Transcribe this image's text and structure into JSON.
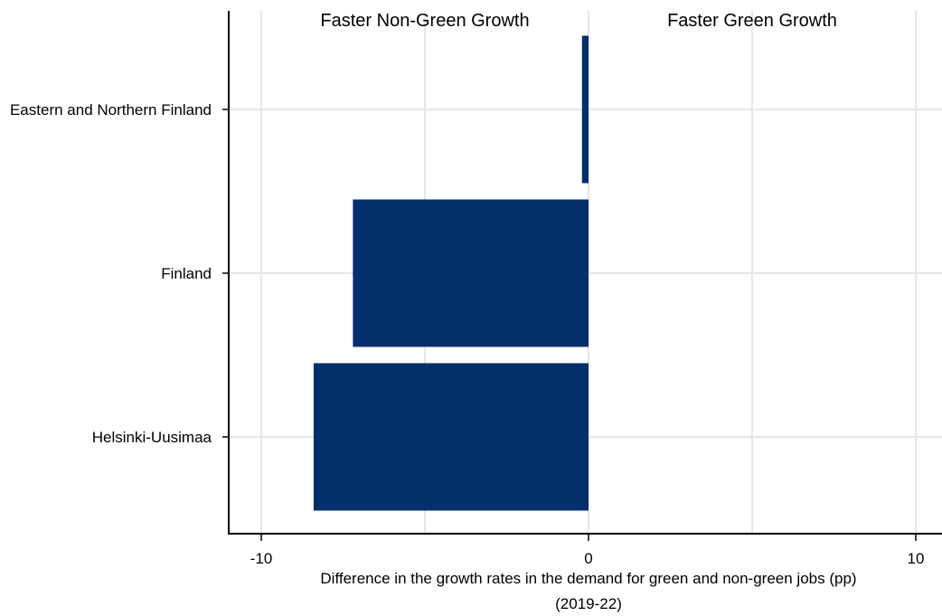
{
  "chart_data": {
    "type": "bar",
    "orientation": "horizontal",
    "categories": [
      "Eastern and Northern Finland",
      "Finland",
      "Helsinki-Uusimaa"
    ],
    "values": [
      -0.2,
      -7.2,
      -8.4
    ],
    "xlim": [
      -11,
      10.8
    ],
    "xticks": [
      -10,
      0,
      10
    ],
    "xtick_labels": [
      "-10",
      "0",
      "10"
    ],
    "xlabel": "Difference in the growth rates in the demand for green and non-green jobs (pp)",
    "xlabel_line2": "(2019-22)",
    "annotations": {
      "left": "Faster Non-Green Growth",
      "right": "Faster Green Growth"
    },
    "grid": true,
    "bar_color": "#03306b"
  }
}
